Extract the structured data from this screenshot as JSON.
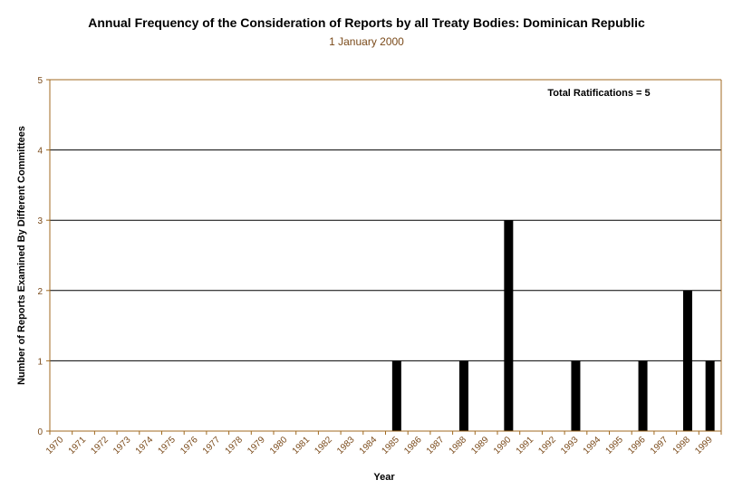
{
  "chart_data": {
    "type": "bar",
    "title": "Annual Frequency of the Consideration of Reports by all Treaty Bodies: Dominican Republic",
    "subtitle": "1 January 2000",
    "xlabel": "Year",
    "ylabel": "Number of Reports Examined By Different Committees",
    "ylim": [
      0,
      5
    ],
    "yticks": [
      0,
      1,
      2,
      3,
      4,
      5
    ],
    "grid": true,
    "annotation": "Total Ratifications = 5",
    "categories": [
      "1970",
      "1971",
      "1972",
      "1973",
      "1974",
      "1975",
      "1976",
      "1977",
      "1978",
      "1979",
      "1980",
      "1981",
      "1982",
      "1983",
      "1984",
      "1985",
      "1986",
      "1987",
      "1988",
      "1989",
      "1990",
      "1991",
      "1992",
      "1993",
      "1994",
      "1995",
      "1996",
      "1997",
      "1998",
      "1999"
    ],
    "values": [
      0,
      0,
      0,
      0,
      0,
      0,
      0,
      0,
      0,
      0,
      0,
      0,
      0,
      0,
      0,
      1,
      0,
      0,
      1,
      0,
      3,
      0,
      0,
      1,
      0,
      0,
      1,
      0,
      2,
      1
    ],
    "colors": {
      "bar": "#000000",
      "axis": "#a06a20",
      "grid": "#000000",
      "tick_text": "#7a4a1a"
    }
  }
}
